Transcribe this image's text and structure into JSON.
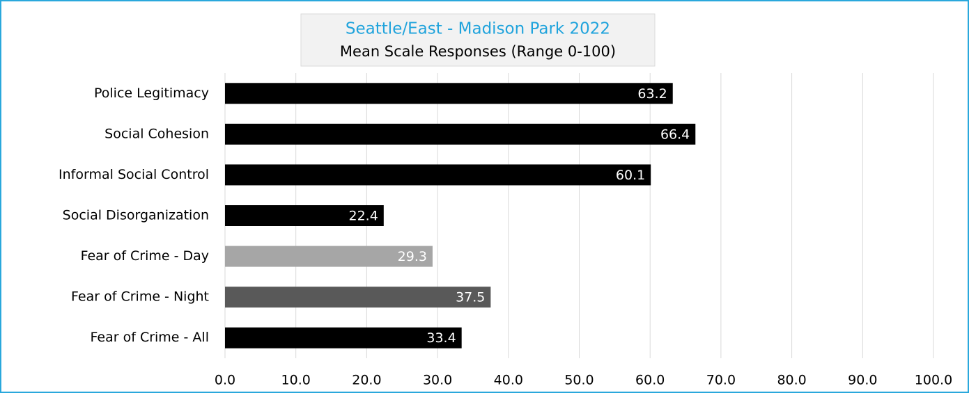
{
  "chart_data": {
    "type": "bar",
    "orientation": "horizontal",
    "title": "Seattle/East - Madison Park 2022",
    "subtitle": "Mean Scale Responses (Range 0-100)",
    "categories": [
      "Police Legitimacy",
      "Social Cohesion",
      "Informal Social Control",
      "Social Disorganization",
      "Fear of Crime - Day",
      "Fear of Crime - Night",
      "Fear of Crime - All"
    ],
    "values": [
      63.2,
      66.4,
      60.1,
      22.4,
      29.3,
      37.5,
      33.4
    ],
    "colors": [
      "#000000",
      "#000000",
      "#000000",
      "#000000",
      "#a6a6a6",
      "#595959",
      "#000000"
    ],
    "xlim": [
      0,
      100
    ],
    "xticks": [
      {
        "value": 0,
        "label": "0.0"
      },
      {
        "value": 10,
        "label": "10.0"
      },
      {
        "value": 20,
        "label": "20.0"
      },
      {
        "value": 30,
        "label": "30.0"
      },
      {
        "value": 40,
        "label": "40.0"
      },
      {
        "value": 50,
        "label": "50.0"
      },
      {
        "value": 60,
        "label": "60.0"
      },
      {
        "value": 70,
        "label": "70.0"
      },
      {
        "value": 80,
        "label": "80.0"
      },
      {
        "value": 90,
        "label": "90.0"
      },
      {
        "value": 100,
        "label": "100.0"
      }
    ],
    "grid": true
  }
}
